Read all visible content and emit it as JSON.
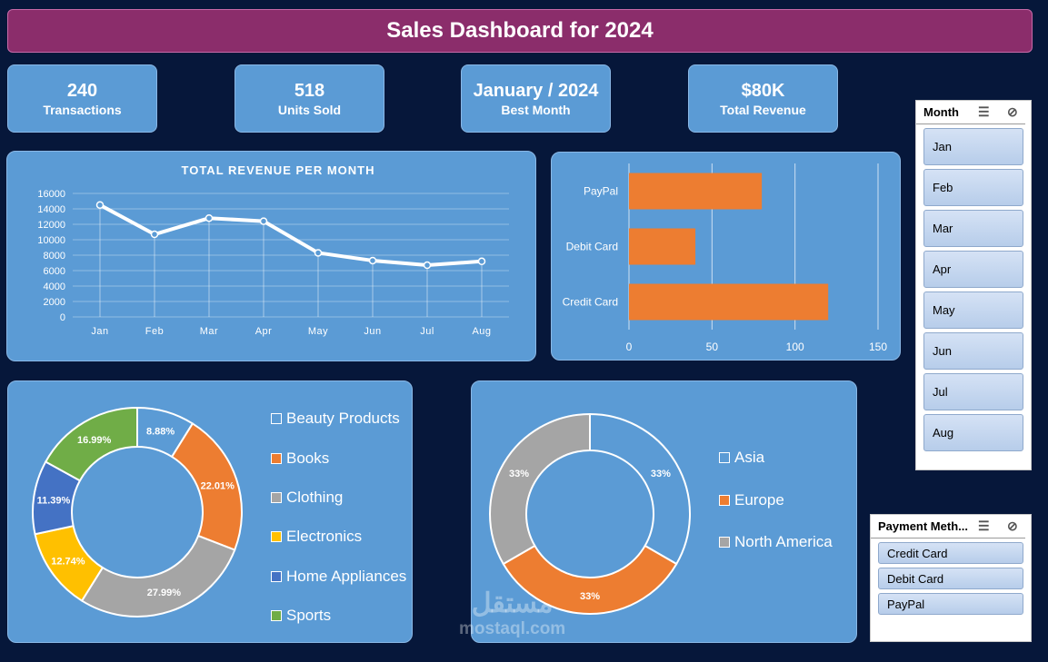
{
  "header": {
    "title": "Sales Dashboard for 2024"
  },
  "kpis": [
    {
      "value": "240",
      "label": "Transactions"
    },
    {
      "value": "518",
      "label": "Units Sold"
    },
    {
      "value": "January / 2024",
      "label": "Best Month"
    },
    {
      "value": "$80K",
      "label": "Total Revenue"
    }
  ],
  "colors": {
    "orange": "#ed7d31",
    "gray": "#a5a5a5",
    "yellow": "#ffc000",
    "blue": "#4472c4",
    "green": "#70ad47",
    "lightblue": "#5b9bd5",
    "white": "#ffffff"
  },
  "chart_data": [
    {
      "type": "line",
      "title": "TOTAL REVENUE PER MONTH",
      "categories": [
        "Jan",
        "Feb",
        "Mar",
        "Apr",
        "May",
        "Jun",
        "Jul",
        "Aug"
      ],
      "values": [
        14500,
        10700,
        12800,
        12400,
        8300,
        7300,
        6700,
        7200
      ],
      "yticks": [
        "0",
        "2000",
        "4000",
        "6000",
        "8000",
        "10000",
        "12000",
        "14000",
        "16000"
      ],
      "ylim": [
        0,
        16000
      ]
    },
    {
      "type": "bar",
      "orientation": "horizontal",
      "categories": [
        "PayPal",
        "Debit Card",
        "Credit Card"
      ],
      "values": [
        80,
        40,
        120
      ],
      "xticks": [
        "0",
        "50",
        "100",
        "150"
      ],
      "xlim": [
        0,
        150
      ]
    },
    {
      "type": "pie",
      "style": "donut",
      "labels": [
        "Beauty Products",
        "Books",
        "Clothing",
        "Electronics",
        "Home Appliances",
        "Sports"
      ],
      "values": [
        8.88,
        22.01,
        27.99,
        12.74,
        11.39,
        16.99
      ],
      "value_labels": [
        "8.88%",
        "22.01%",
        "27.99%",
        "12.74%",
        "11.39%",
        "16.99%"
      ]
    },
    {
      "type": "pie",
      "style": "donut",
      "labels": [
        "Asia",
        "Europe",
        "North America"
      ],
      "values": [
        33.33,
        33.33,
        33.34
      ],
      "value_labels": [
        "33%",
        "33%",
        "33%"
      ]
    }
  ],
  "slicers": {
    "month": {
      "title": "Month",
      "items": [
        "Jan",
        "Feb",
        "Mar",
        "Apr",
        "May",
        "Jun",
        "Jul",
        "Aug"
      ]
    },
    "payment": {
      "title": "Payment Meth...",
      "items": [
        "Credit Card",
        "Debit Card",
        "PayPal"
      ]
    }
  },
  "watermark": {
    "arabic": "مستقل",
    "latin": "mostaql.com"
  }
}
